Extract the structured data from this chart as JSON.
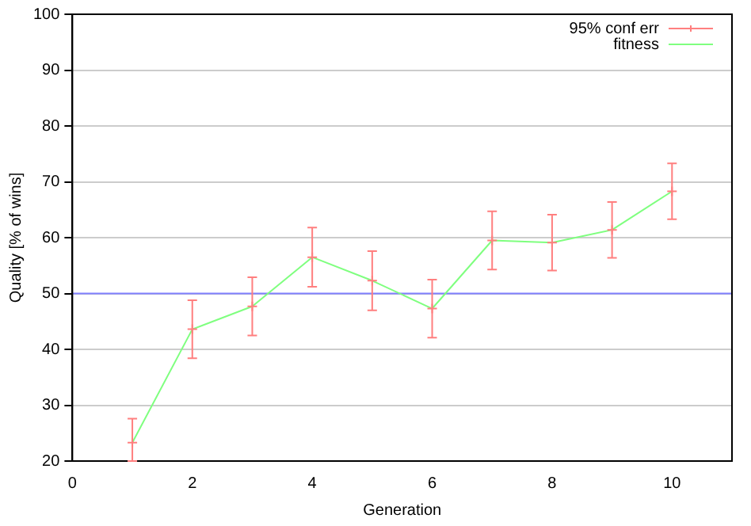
{
  "chart_data": {
    "type": "line",
    "xlabel": "Generation",
    "ylabel": "Quality [% of wins]",
    "x": [
      1,
      2,
      3,
      4,
      5,
      6,
      7,
      8,
      9,
      10
    ],
    "series": [
      {
        "name": "95% conf err",
        "type": "scatter",
        "color": "#ff7f7f",
        "marker": "cross",
        "values": [
          23.3,
          43.6,
          47.7,
          56.5,
          52.3,
          47.3,
          59.5,
          59.1,
          61.4,
          68.3
        ],
        "errors": [
          [
            20.0,
            27.6
          ],
          5.2,
          5.2,
          5.3,
          5.3,
          5.2,
          5.2,
          5.0,
          5.0,
          5.0
        ]
      },
      {
        "name": "fitness",
        "color": "#7fff7f",
        "marker": "none",
        "values": [
          23.3,
          43.6,
          47.7,
          56.5,
          52.3,
          47.3,
          59.5,
          59.1,
          61.4,
          68.3
        ]
      }
    ],
    "xlim": [
      0,
      11
    ],
    "xticks": [
      0,
      2,
      4,
      6,
      8,
      10
    ],
    "ylim": [
      20,
      100
    ],
    "yticks": [
      20,
      30,
      40,
      50,
      60,
      70,
      80,
      90,
      100
    ],
    "ref_lines": [
      {
        "axis": "y",
        "value": 50,
        "color": "#7f7fff"
      }
    ],
    "grid": "y",
    "legend": "top right"
  }
}
